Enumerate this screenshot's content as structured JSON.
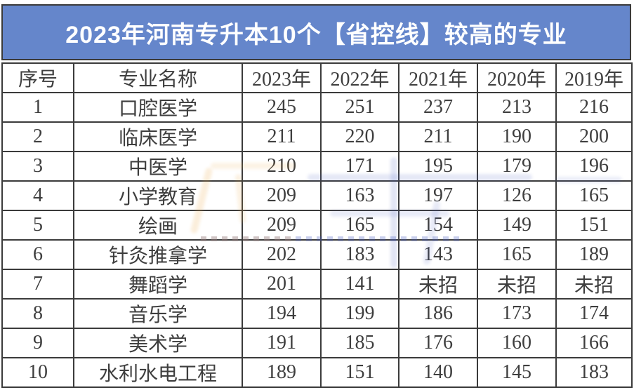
{
  "page": {
    "title_banner": "2023年河南专升本10个【省控线】较高的专业"
  },
  "colors": {
    "banner_bg": "#6586CB",
    "banner_text": "#FFFFFF",
    "table_border": "#3B3B3B",
    "cell_text": "#3E3E3E",
    "watermark_orange": "#E9A23B",
    "watermark_blue": "#4A5FC0"
  },
  "chart_data": {
    "type": "table",
    "title": "2023年河南专升本10个【省控线】较高的专业",
    "columns": [
      "序号",
      "专业名称",
      "2023年",
      "2022年",
      "2021年",
      "2020年",
      "2019年"
    ],
    "rows": [
      [
        "1",
        "口腔医学",
        "245",
        "251",
        "237",
        "213",
        "216"
      ],
      [
        "2",
        "临床医学",
        "211",
        "220",
        "211",
        "190",
        "200"
      ],
      [
        "3",
        "中医学",
        "210",
        "171",
        "195",
        "179",
        "196"
      ],
      [
        "4",
        "小学教育",
        "209",
        "163",
        "197",
        "126",
        "165"
      ],
      [
        "5",
        "绘画",
        "209",
        "165",
        "154",
        "149",
        "151"
      ],
      [
        "6",
        "针灸推拿学",
        "202",
        "183",
        "143",
        "165",
        "189"
      ],
      [
        "7",
        "舞蹈学",
        "201",
        "141",
        "未招",
        "未招",
        "未招"
      ],
      [
        "8",
        "音乐学",
        "194",
        "199",
        "186",
        "173",
        "174"
      ],
      [
        "9",
        "美术学",
        "191",
        "185",
        "176",
        "160",
        "166"
      ],
      [
        "10",
        "水利水电工程",
        "189",
        "151",
        "140",
        "145",
        "183"
      ]
    ]
  }
}
